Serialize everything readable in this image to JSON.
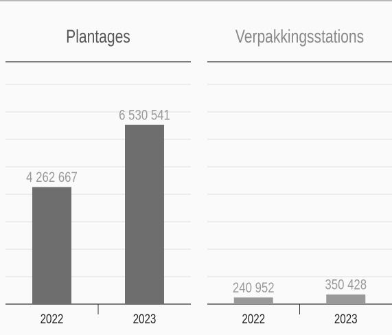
{
  "chart_data": [
    {
      "type": "bar",
      "title": "Plantages",
      "title_color": "#555555",
      "categories": [
        "2022",
        "2023"
      ],
      "values": [
        4262667,
        6530541
      ],
      "value_labels": [
        "4 262 667",
        "6 530 541"
      ],
      "color": "#6e6e6e",
      "ylim": [
        0,
        8000000
      ],
      "yticks": [
        0,
        1000000,
        2000000,
        3000000,
        4000000,
        5000000,
        6000000,
        7000000,
        8000000
      ],
      "grid": true
    },
    {
      "type": "bar",
      "title": "Verpakkingsstations",
      "title_color": "#888888",
      "categories": [
        "2022",
        "2023"
      ],
      "values": [
        240952,
        350428
      ],
      "value_labels": [
        "240 952",
        "350 428"
      ],
      "color": "#999999",
      "ylim": [
        0,
        8000000
      ],
      "yticks": [
        0,
        1000000,
        2000000,
        3000000,
        4000000,
        5000000,
        6000000,
        7000000,
        8000000
      ],
      "grid": true
    }
  ]
}
